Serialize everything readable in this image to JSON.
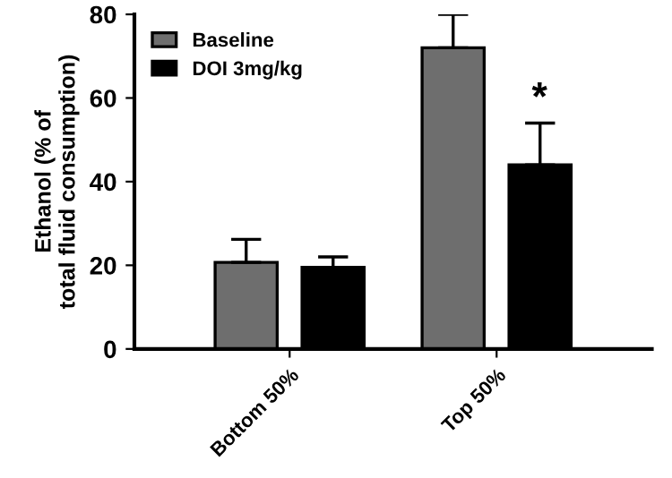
{
  "chart_data": {
    "type": "bar",
    "ylabel": "Ethanol (% of\ntotal fluid consumption)",
    "categories": [
      "Bottom 50%",
      "Top 50%"
    ],
    "series": [
      {
        "name": "Baseline",
        "color": "#6e6e6e",
        "values": [
          20.7,
          72
        ],
        "errors": [
          5.5,
          8
        ]
      },
      {
        "name": "DOI 3mg/kg",
        "color": "#000000",
        "values": [
          19.5,
          44
        ],
        "errors": [
          2.5,
          10
        ]
      }
    ],
    "ylim": [
      0,
      80
    ],
    "yticks": [
      0,
      20,
      40,
      60,
      80
    ],
    "legend": "top left",
    "grid": false,
    "annotations": [
      "*"
    ]
  }
}
